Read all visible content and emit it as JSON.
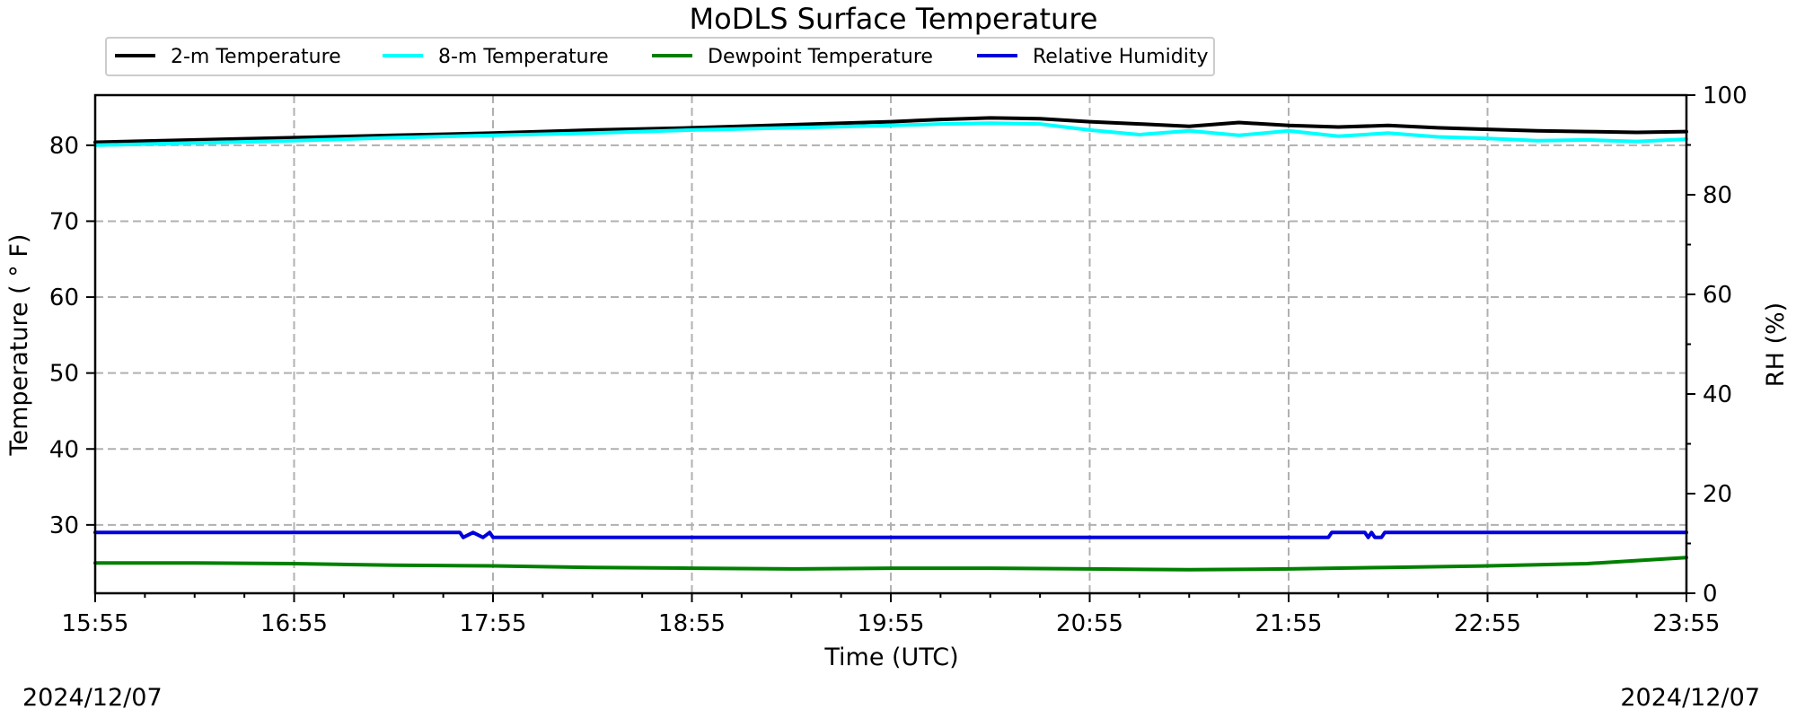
{
  "chart_data": {
    "type": "line",
    "title": "MoDLS Surface Temperature",
    "xlabel": "Time (UTC)",
    "ylabel": "Temperature ($^\\circ$F)",
    "ylabel_display": "Temperature ( ° F)",
    "ylabel2": "RH (%)",
    "date_left": "2024/12/07",
    "date_right": "2024/12/07",
    "x_ticks": [
      "15:55",
      "16:55",
      "17:55",
      "18:55",
      "19:55",
      "20:55",
      "21:55",
      "22:55",
      "23:55"
    ],
    "y_ticks": [
      30,
      40,
      50,
      60,
      70,
      80
    ],
    "y2_ticks": [
      0,
      20,
      40,
      60,
      80,
      100
    ],
    "ylim": [
      21,
      86.6
    ],
    "y2lim": [
      0,
      100
    ],
    "grid": true,
    "legend_position": "top-left, above plot",
    "series": [
      {
        "name": "2-m Temperature",
        "color": "#000000",
        "axis": "left",
        "x_minutes": [
          0,
          30,
          60,
          90,
          120,
          150,
          180,
          210,
          240,
          255,
          270,
          285,
          300,
          315,
          330,
          345,
          360,
          375,
          390,
          405,
          420,
          435,
          450,
          465,
          480
        ],
        "y": [
          80.4,
          80.7,
          81.0,
          81.3,
          81.6,
          82.0,
          82.3,
          82.7,
          83.1,
          83.4,
          83.6,
          83.5,
          83.1,
          82.8,
          82.5,
          83.0,
          82.6,
          82.4,
          82.6,
          82.3,
          82.1,
          81.9,
          81.8,
          81.7,
          81.8
        ]
      },
      {
        "name": "8-m Temperature",
        "color": "#00ffff",
        "axis": "left",
        "x_minutes": [
          0,
          30,
          60,
          90,
          120,
          150,
          180,
          210,
          240,
          255,
          270,
          285,
          300,
          315,
          330,
          345,
          360,
          375,
          390,
          405,
          420,
          435,
          450,
          465,
          480
        ],
        "y": [
          80.0,
          80.3,
          80.6,
          81.0,
          81.3,
          81.6,
          82.0,
          82.3,
          82.6,
          82.8,
          82.9,
          82.8,
          82.0,
          81.4,
          81.9,
          81.3,
          81.9,
          81.2,
          81.6,
          81.1,
          80.9,
          80.6,
          80.7,
          80.5,
          80.8
        ]
      },
      {
        "name": "Dewpoint Temperature",
        "color": "#008000",
        "axis": "left",
        "x_minutes": [
          0,
          30,
          60,
          90,
          120,
          150,
          180,
          210,
          240,
          270,
          300,
          330,
          360,
          390,
          420,
          450,
          465,
          480
        ],
        "y": [
          25.0,
          25.0,
          24.9,
          24.7,
          24.6,
          24.4,
          24.3,
          24.2,
          24.3,
          24.3,
          24.2,
          24.1,
          24.2,
          24.4,
          24.6,
          24.9,
          25.3,
          25.7
        ]
      },
      {
        "name": "Relative Humidity",
        "color": "#0000dd",
        "axis": "right",
        "x_minutes": [
          0,
          110,
          111,
          114,
          117,
          119,
          120,
          372,
          373,
          383,
          384,
          385,
          386,
          388,
          389,
          390,
          480
        ],
        "y": [
          12.2,
          12.2,
          11.2,
          12.2,
          11.2,
          12.2,
          11.2,
          11.2,
          12.2,
          12.2,
          11.2,
          12.2,
          11.2,
          11.2,
          12.2,
          12.2,
          12.2
        ]
      }
    ]
  }
}
